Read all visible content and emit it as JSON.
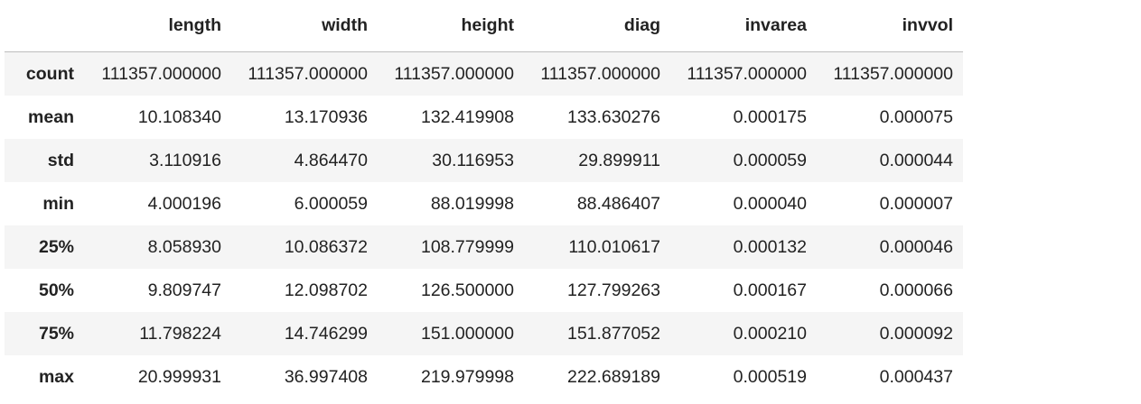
{
  "table": {
    "index_header": "",
    "columns": [
      "length",
      "width",
      "height",
      "diag",
      "invarea",
      "invvol"
    ],
    "rows": [
      {
        "label": "count",
        "values": [
          "111357.000000",
          "111357.000000",
          "111357.000000",
          "111357.000000",
          "111357.000000",
          "111357.000000"
        ]
      },
      {
        "label": "mean",
        "values": [
          "10.108340",
          "13.170936",
          "132.419908",
          "133.630276",
          "0.000175",
          "0.000075"
        ]
      },
      {
        "label": "std",
        "values": [
          "3.110916",
          "4.864470",
          "30.116953",
          "29.899911",
          "0.000059",
          "0.000044"
        ]
      },
      {
        "label": "min",
        "values": [
          "4.000196",
          "6.000059",
          "88.019998",
          "88.486407",
          "0.000040",
          "0.000007"
        ]
      },
      {
        "label": "25%",
        "values": [
          "8.058930",
          "10.086372",
          "108.779999",
          "110.010617",
          "0.000132",
          "0.000046"
        ]
      },
      {
        "label": "50%",
        "values": [
          "9.809747",
          "12.098702",
          "126.500000",
          "127.799263",
          "0.000167",
          "0.000066"
        ]
      },
      {
        "label": "75%",
        "values": [
          "11.798224",
          "14.746299",
          "151.000000",
          "151.877052",
          "0.000210",
          "0.000092"
        ]
      },
      {
        "label": "max",
        "values": [
          "20.999931",
          "36.997408",
          "219.979998",
          "222.689189",
          "0.000519",
          "0.000437"
        ]
      }
    ]
  },
  "colors": {
    "striped_row": "#f5f5f5",
    "text": "#222222",
    "header_rule": "#bdbdbd"
  }
}
